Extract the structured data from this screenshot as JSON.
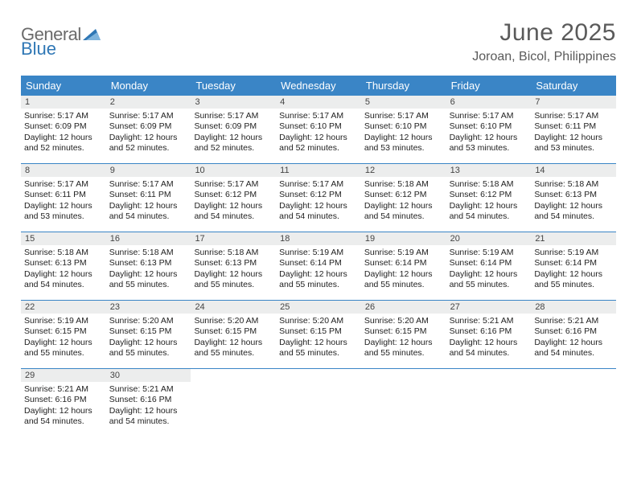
{
  "brand": {
    "part1": "General",
    "part2": "Blue"
  },
  "title": "June 2025",
  "location": "Joroan, Bicol, Philippines",
  "colors": {
    "header_bg": "#3a85c6",
    "header_fg": "#ffffff",
    "daynum_bg": "#eceded",
    "rule": "#3a85c6",
    "brand_gray": "#6b6b6b",
    "brand_blue": "#2f77b5",
    "title_color": "#5a5a5a"
  },
  "weekdays": [
    "Sunday",
    "Monday",
    "Tuesday",
    "Wednesday",
    "Thursday",
    "Friday",
    "Saturday"
  ],
  "weeks": [
    [
      {
        "n": "1",
        "sr": "5:17 AM",
        "ss": "6:09 PM",
        "dl": "12 hours and 52 minutes."
      },
      {
        "n": "2",
        "sr": "5:17 AM",
        "ss": "6:09 PM",
        "dl": "12 hours and 52 minutes."
      },
      {
        "n": "3",
        "sr": "5:17 AM",
        "ss": "6:09 PM",
        "dl": "12 hours and 52 minutes."
      },
      {
        "n": "4",
        "sr": "5:17 AM",
        "ss": "6:10 PM",
        "dl": "12 hours and 52 minutes."
      },
      {
        "n": "5",
        "sr": "5:17 AM",
        "ss": "6:10 PM",
        "dl": "12 hours and 53 minutes."
      },
      {
        "n": "6",
        "sr": "5:17 AM",
        "ss": "6:10 PM",
        "dl": "12 hours and 53 minutes."
      },
      {
        "n": "7",
        "sr": "5:17 AM",
        "ss": "6:11 PM",
        "dl": "12 hours and 53 minutes."
      }
    ],
    [
      {
        "n": "8",
        "sr": "5:17 AM",
        "ss": "6:11 PM",
        "dl": "12 hours and 53 minutes."
      },
      {
        "n": "9",
        "sr": "5:17 AM",
        "ss": "6:11 PM",
        "dl": "12 hours and 54 minutes."
      },
      {
        "n": "10",
        "sr": "5:17 AM",
        "ss": "6:12 PM",
        "dl": "12 hours and 54 minutes."
      },
      {
        "n": "11",
        "sr": "5:17 AM",
        "ss": "6:12 PM",
        "dl": "12 hours and 54 minutes."
      },
      {
        "n": "12",
        "sr": "5:18 AM",
        "ss": "6:12 PM",
        "dl": "12 hours and 54 minutes."
      },
      {
        "n": "13",
        "sr": "5:18 AM",
        "ss": "6:12 PM",
        "dl": "12 hours and 54 minutes."
      },
      {
        "n": "14",
        "sr": "5:18 AM",
        "ss": "6:13 PM",
        "dl": "12 hours and 54 minutes."
      }
    ],
    [
      {
        "n": "15",
        "sr": "5:18 AM",
        "ss": "6:13 PM",
        "dl": "12 hours and 54 minutes."
      },
      {
        "n": "16",
        "sr": "5:18 AM",
        "ss": "6:13 PM",
        "dl": "12 hours and 55 minutes."
      },
      {
        "n": "17",
        "sr": "5:18 AM",
        "ss": "6:13 PM",
        "dl": "12 hours and 55 minutes."
      },
      {
        "n": "18",
        "sr": "5:19 AM",
        "ss": "6:14 PM",
        "dl": "12 hours and 55 minutes."
      },
      {
        "n": "19",
        "sr": "5:19 AM",
        "ss": "6:14 PM",
        "dl": "12 hours and 55 minutes."
      },
      {
        "n": "20",
        "sr": "5:19 AM",
        "ss": "6:14 PM",
        "dl": "12 hours and 55 minutes."
      },
      {
        "n": "21",
        "sr": "5:19 AM",
        "ss": "6:14 PM",
        "dl": "12 hours and 55 minutes."
      }
    ],
    [
      {
        "n": "22",
        "sr": "5:19 AM",
        "ss": "6:15 PM",
        "dl": "12 hours and 55 minutes."
      },
      {
        "n": "23",
        "sr": "5:20 AM",
        "ss": "6:15 PM",
        "dl": "12 hours and 55 minutes."
      },
      {
        "n": "24",
        "sr": "5:20 AM",
        "ss": "6:15 PM",
        "dl": "12 hours and 55 minutes."
      },
      {
        "n": "25",
        "sr": "5:20 AM",
        "ss": "6:15 PM",
        "dl": "12 hours and 55 minutes."
      },
      {
        "n": "26",
        "sr": "5:20 AM",
        "ss": "6:15 PM",
        "dl": "12 hours and 55 minutes."
      },
      {
        "n": "27",
        "sr": "5:21 AM",
        "ss": "6:16 PM",
        "dl": "12 hours and 54 minutes."
      },
      {
        "n": "28",
        "sr": "5:21 AM",
        "ss": "6:16 PM",
        "dl": "12 hours and 54 minutes."
      }
    ],
    [
      {
        "n": "29",
        "sr": "5:21 AM",
        "ss": "6:16 PM",
        "dl": "12 hours and 54 minutes."
      },
      {
        "n": "30",
        "sr": "5:21 AM",
        "ss": "6:16 PM",
        "dl": "12 hours and 54 minutes."
      },
      null,
      null,
      null,
      null,
      null
    ]
  ],
  "labels": {
    "sunrise": "Sunrise:",
    "sunset": "Sunset:",
    "daylight": "Daylight:"
  }
}
